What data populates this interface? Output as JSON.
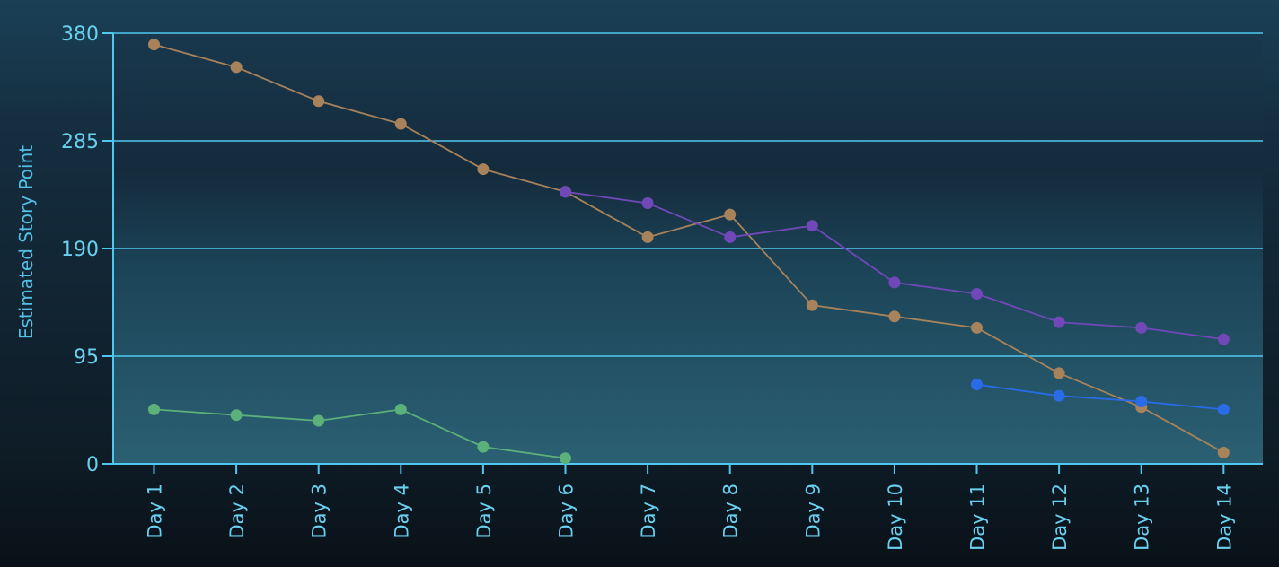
{
  "chart_data": {
    "type": "line",
    "title": "",
    "xlabel": "",
    "ylabel": "Estimated Story Point",
    "ylim": [
      0,
      380
    ],
    "yticks": [
      0,
      95,
      190,
      285,
      380
    ],
    "grid": true,
    "categories": [
      "Day 1",
      "Day 2",
      "Day 3",
      "Day 4",
      "Day 5",
      "Day 6",
      "Day 7",
      "Day 8",
      "Day 9",
      "Day 10",
      "Day 11",
      "Day 12",
      "Day 13",
      "Day 14"
    ],
    "series": [
      {
        "color": "#a8825a",
        "values": [
          370,
          350,
          320,
          300,
          260,
          240,
          200,
          220,
          140,
          130,
          120,
          80,
          50,
          10
        ]
      },
      {
        "color": "#7048b8",
        "values": [
          null,
          null,
          null,
          null,
          null,
          240,
          230,
          200,
          210,
          160,
          150,
          125,
          120,
          110
        ]
      },
      {
        "color": "#5cb079",
        "values": [
          48,
          43,
          38,
          48,
          15,
          5,
          null,
          null,
          null,
          null,
          null,
          null,
          null,
          null
        ]
      },
      {
        "color": "#2a6be8",
        "values": [
          null,
          null,
          null,
          null,
          null,
          null,
          null,
          null,
          null,
          null,
          70,
          60,
          55,
          48
        ]
      }
    ]
  }
}
